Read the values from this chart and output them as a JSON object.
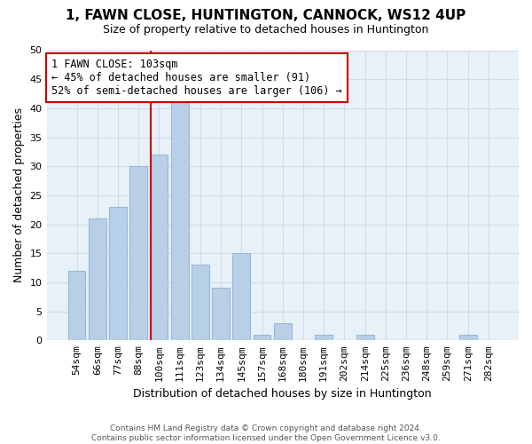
{
  "title": "1, FAWN CLOSE, HUNTINGTON, CANNOCK, WS12 4UP",
  "subtitle": "Size of property relative to detached houses in Huntington",
  "xlabel": "Distribution of detached houses by size in Huntington",
  "ylabel": "Number of detached properties",
  "footer_line1": "Contains HM Land Registry data © Crown copyright and database right 2024.",
  "footer_line2": "Contains public sector information licensed under the Open Government Licence v3.0.",
  "categories": [
    "54sqm",
    "66sqm",
    "77sqm",
    "88sqm",
    "100sqm",
    "111sqm",
    "123sqm",
    "134sqm",
    "145sqm",
    "157sqm",
    "168sqm",
    "180sqm",
    "191sqm",
    "202sqm",
    "214sqm",
    "225sqm",
    "236sqm",
    "248sqm",
    "259sqm",
    "271sqm",
    "282sqm"
  ],
  "values": [
    12,
    21,
    23,
    30,
    32,
    41,
    13,
    9,
    15,
    1,
    3,
    0,
    1,
    0,
    1,
    0,
    0,
    0,
    0,
    1,
    0
  ],
  "bar_color": "#b8cfe8",
  "bar_edge_color": "#9ab8d8",
  "highlight_bar_index": 4,
  "highlight_line_color": "#cc0000",
  "ylim": [
    0,
    50
  ],
  "yticks": [
    0,
    5,
    10,
    15,
    20,
    25,
    30,
    35,
    40,
    45,
    50
  ],
  "annotation_title": "1 FAWN CLOSE: 103sqm",
  "annotation_line1": "← 45% of detached houses are smaller (91)",
  "annotation_line2": "52% of semi-detached houses are larger (106) →",
  "annotation_box_edge_color": "#cc0000",
  "grid_color": "#d0dce8",
  "background_color": "#e8f0f8"
}
